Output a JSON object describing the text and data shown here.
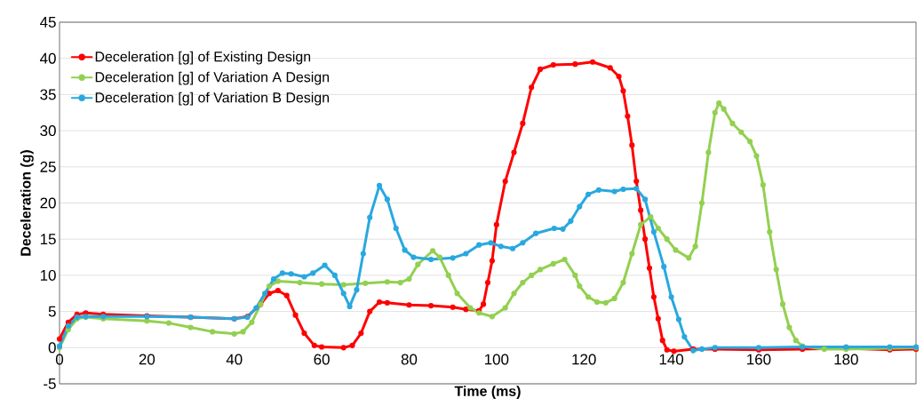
{
  "chart_data": {
    "type": "line",
    "xlabel": "Time (ms)",
    "ylabel": "Deceleration (g)",
    "xlim": [
      0,
      196
    ],
    "ylim": [
      -5,
      45
    ],
    "xticks": [
      0,
      20,
      40,
      60,
      80,
      100,
      120,
      140,
      160,
      180
    ],
    "yticks": [
      -5,
      0,
      5,
      10,
      15,
      20,
      25,
      30,
      35,
      40,
      45
    ],
    "grid": "y",
    "legend": "top left",
    "marker": "circle",
    "line_style": "solid",
    "series": [
      {
        "name": "Deceleration [g] of Existing Design",
        "color": "#ff0000",
        "x": [
          0,
          2,
          4,
          6,
          10,
          20,
          30,
          40,
          43,
          46,
          48,
          50,
          52,
          54,
          56,
          58.3,
          60,
          65,
          67,
          69,
          71,
          73.2,
          75,
          80,
          85,
          90,
          93,
          96,
          97,
          98,
          99,
          100,
          102,
          104,
          106,
          108,
          110,
          113,
          118,
          122,
          126,
          128,
          129,
          130,
          131,
          132,
          133,
          134,
          135,
          136,
          137,
          138,
          139,
          140.6,
          145,
          150,
          160,
          170,
          180,
          190,
          196
        ],
        "values": [
          1.2,
          3.5,
          4.6,
          4.8,
          4.6,
          4.4,
          4.2,
          4.0,
          4.3,
          6,
          7.5,
          7.9,
          7.2,
          4.5,
          2,
          0.3,
          0.1,
          0,
          0.3,
          2,
          5,
          6.3,
          6.2,
          5.9,
          5.8,
          5.6,
          5.3,
          5.1,
          6,
          9,
          12,
          17,
          23,
          27,
          31,
          36,
          38.5,
          39.1,
          39.2,
          39.5,
          38.7,
          37.5,
          35.5,
          32,
          28,
          23,
          19,
          15,
          11,
          7,
          4,
          1,
          -0.3,
          -0.5,
          -0.2,
          -0.2,
          -0.3,
          -0.2,
          -0.1,
          -0.3,
          -0.2
        ]
      },
      {
        "name": "Deceleration [g] of Variation A Design",
        "color": "#92d050",
        "x": [
          0,
          2,
          4,
          6,
          10,
          20,
          25,
          30,
          35,
          40,
          42,
          44,
          46,
          48,
          50,
          55,
          60,
          65,
          70,
          75,
          78,
          80,
          82,
          85.4,
          87,
          89,
          91,
          94,
          96,
          99,
          102,
          104,
          106,
          108,
          110,
          113,
          115.6,
          118,
          119,
          121,
          123,
          125,
          127,
          129,
          131,
          133,
          135.3,
          137,
          139,
          141,
          144,
          145.5,
          147,
          148.5,
          150,
          150.9,
          152,
          154,
          156,
          158,
          159.5,
          161,
          162.5,
          164,
          165.5,
          167,
          168.5,
          170,
          175,
          180,
          190,
          196
        ],
        "values": [
          0,
          2.5,
          4,
          4.2,
          4.0,
          3.7,
          3.4,
          2.8,
          2.2,
          1.9,
          2.2,
          3.5,
          6,
          8.5,
          9.2,
          9.0,
          8.8,
          8.7,
          8.9,
          9.1,
          9.0,
          9.5,
          11.5,
          13.4,
          12.5,
          10,
          7.5,
          5.5,
          4.8,
          4.3,
          5.5,
          7.5,
          9,
          10,
          10.8,
          11.6,
          12.2,
          10,
          8.5,
          7,
          6.3,
          6.2,
          6.8,
          9,
          13,
          17,
          18.1,
          16.5,
          15,
          13.5,
          12.4,
          14,
          20,
          27,
          32.5,
          33.8,
          33,
          31,
          29.8,
          28.5,
          26.5,
          22.5,
          16,
          10.8,
          6,
          2.8,
          1,
          0.2,
          -0.2,
          -0.2,
          -0.1,
          0
        ]
      },
      {
        "name": "Deceleration [g] of Variation B Design",
        "color": "#29a8e0",
        "x": [
          0,
          2,
          4,
          6,
          10,
          20,
          30,
          40,
          43,
          45,
          47,
          49,
          51,
          53,
          56,
          58,
          60.7,
          63,
          65,
          66.4,
          68,
          69.5,
          71,
          73.2,
          75,
          77,
          79,
          81,
          85,
          90,
          93,
          96,
          98.7,
          101,
          103.7,
          106,
          109,
          113.2,
          115.2,
          117,
          119,
          121,
          123.4,
          127,
          129,
          132,
          134,
          136,
          138.3,
          140,
          141.7,
          143,
          145,
          147,
          150,
          160,
          170,
          180,
          190,
          196
        ],
        "values": [
          0.2,
          3,
          4.2,
          4.3,
          4.3,
          4.3,
          4.2,
          4.0,
          4.2,
          5.5,
          7.5,
          9.5,
          10.3,
          10.2,
          9.8,
          10.3,
          11.4,
          10,
          7.5,
          5.7,
          8,
          13,
          18,
          22.4,
          20.5,
          16.5,
          13.5,
          12.5,
          12.2,
          12.4,
          13,
          14.2,
          14.5,
          14,
          13.7,
          14.5,
          15.8,
          16.5,
          16.4,
          17.5,
          19.5,
          21.2,
          21.8,
          21.6,
          21.9,
          22,
          20.5,
          16,
          11.2,
          7,
          3.9,
          1.5,
          -0.4,
          -0.2,
          0,
          0,
          0.1,
          0.1,
          0.1,
          0.1
        ]
      }
    ]
  }
}
